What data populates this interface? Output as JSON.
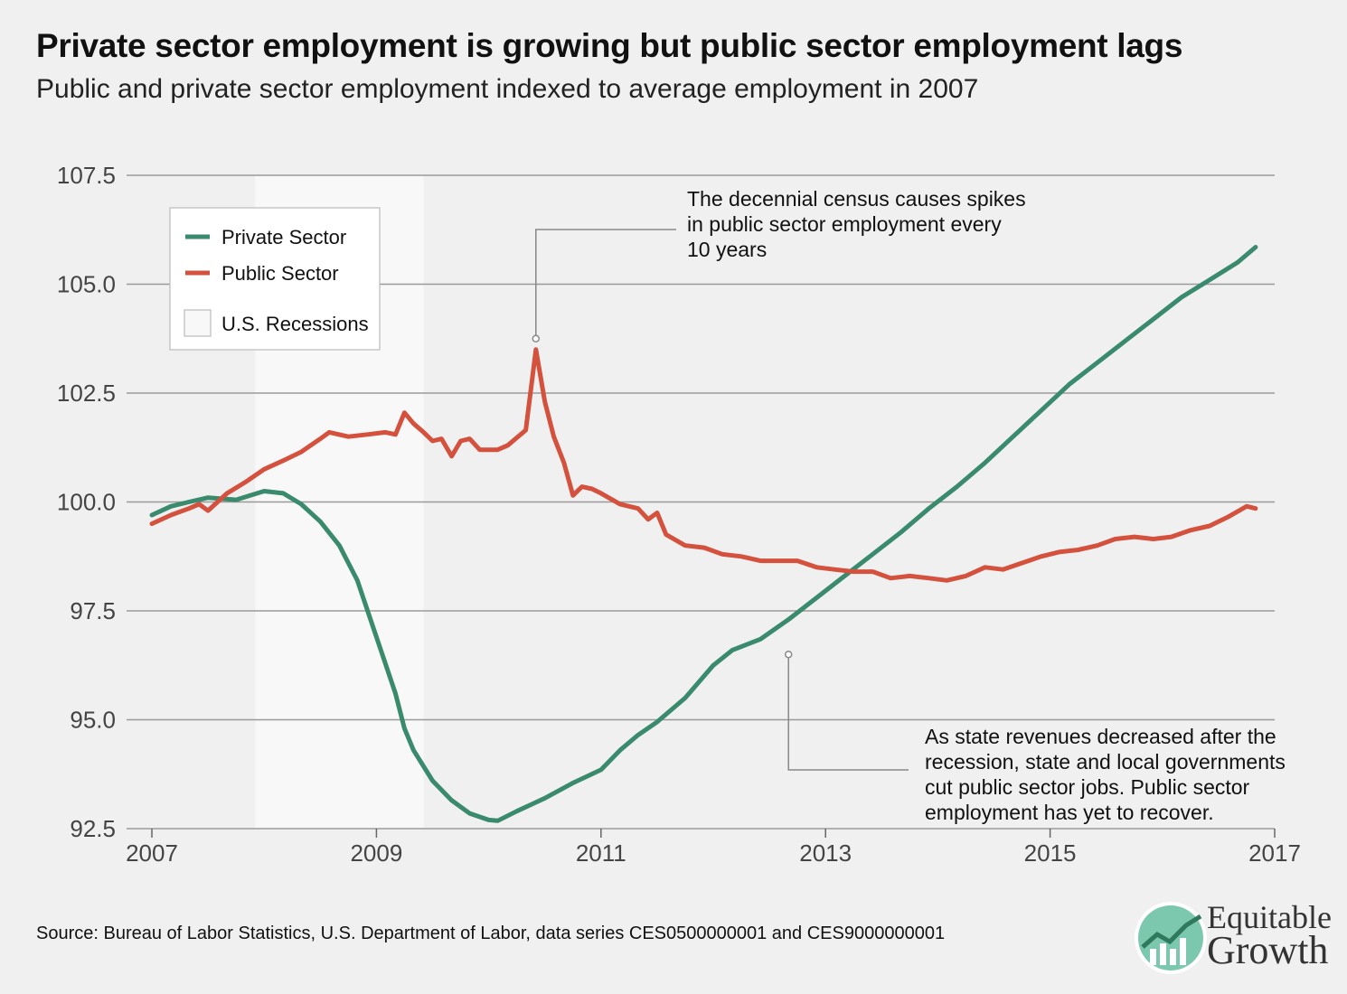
{
  "title": "Private sector employment is growing but public sector employment lags",
  "subtitle": "Public and private sector employment indexed to average employment in 2007",
  "source": "Source: Bureau of Labor Statistics, U.S. Department of Labor, data series CES0500000001 and CES9000000001",
  "logo": {
    "line1": "Equitable",
    "line2": "Growth"
  },
  "colors": {
    "private": "#3a8a6e",
    "public": "#d4513d",
    "recession": "#f8f8f8",
    "grid": "#9a9a9a",
    "background": "#f0f0f0"
  },
  "chart_data": {
    "type": "line",
    "title": "Private sector employment is growing but public sector employment lags",
    "subtitle": "Public and private sector employment indexed to average employment in 2007",
    "xlim": [
      2007,
      2017
    ],
    "ylim": [
      92.5,
      107.5
    ],
    "x_ticks": [
      "2007",
      "2009",
      "2011",
      "2013",
      "2015",
      "2017"
    ],
    "y_ticks": [
      "92.5",
      "95.0",
      "97.5",
      "100.0",
      "102.5",
      "105.0",
      "107.5"
    ],
    "grid": "horizontal",
    "legend": {
      "placement": "top-left",
      "entries": [
        "Private Sector",
        "Public Sector",
        "U.S. Recessions"
      ]
    },
    "recession": {
      "start": 2007.92,
      "end": 2009.42,
      "label": "U.S. Recessions"
    },
    "series": [
      {
        "name": "Private Sector",
        "color": "#3a8a6e",
        "points": [
          [
            2007.0,
            99.7
          ],
          [
            2007.17,
            99.9
          ],
          [
            2007.33,
            100.0
          ],
          [
            2007.5,
            100.1
          ],
          [
            2007.75,
            100.05
          ],
          [
            2008.0,
            100.25
          ],
          [
            2008.17,
            100.2
          ],
          [
            2008.33,
            99.95
          ],
          [
            2008.5,
            99.55
          ],
          [
            2008.67,
            99.0
          ],
          [
            2008.83,
            98.2
          ],
          [
            2009.0,
            96.9
          ],
          [
            2009.17,
            95.6
          ],
          [
            2009.25,
            94.8
          ],
          [
            2009.33,
            94.3
          ],
          [
            2009.5,
            93.6
          ],
          [
            2009.67,
            93.15
          ],
          [
            2009.83,
            92.85
          ],
          [
            2010.0,
            92.7
          ],
          [
            2010.08,
            92.68
          ],
          [
            2010.25,
            92.9
          ],
          [
            2010.5,
            93.2
          ],
          [
            2010.75,
            93.55
          ],
          [
            2011.0,
            93.85
          ],
          [
            2011.17,
            94.3
          ],
          [
            2011.33,
            94.65
          ],
          [
            2011.5,
            94.95
          ],
          [
            2011.75,
            95.5
          ],
          [
            2012.0,
            96.25
          ],
          [
            2012.17,
            96.6
          ],
          [
            2012.42,
            96.85
          ],
          [
            2012.67,
            97.3
          ],
          [
            2012.92,
            97.8
          ],
          [
            2013.17,
            98.3
          ],
          [
            2013.42,
            98.8
          ],
          [
            2013.67,
            99.3
          ],
          [
            2013.92,
            99.85
          ],
          [
            2014.17,
            100.35
          ],
          [
            2014.42,
            100.9
          ],
          [
            2014.67,
            101.5
          ],
          [
            2014.92,
            102.1
          ],
          [
            2015.17,
            102.7
          ],
          [
            2015.42,
            103.2
          ],
          [
            2015.67,
            103.7
          ],
          [
            2015.92,
            104.2
          ],
          [
            2016.17,
            104.7
          ],
          [
            2016.42,
            105.1
          ],
          [
            2016.67,
            105.5
          ],
          [
            2016.83,
            105.85
          ]
        ]
      },
      {
        "name": "Public Sector",
        "color": "#d4513d",
        "points": [
          [
            2007.0,
            99.5
          ],
          [
            2007.17,
            99.7
          ],
          [
            2007.33,
            99.85
          ],
          [
            2007.42,
            99.95
          ],
          [
            2007.5,
            99.8
          ],
          [
            2007.67,
            100.2
          ],
          [
            2007.83,
            100.45
          ],
          [
            2008.0,
            100.75
          ],
          [
            2008.17,
            100.95
          ],
          [
            2008.33,
            101.15
          ],
          [
            2008.5,
            101.45
          ],
          [
            2008.58,
            101.6
          ],
          [
            2008.75,
            101.5
          ],
          [
            2008.92,
            101.55
          ],
          [
            2009.08,
            101.6
          ],
          [
            2009.17,
            101.55
          ],
          [
            2009.25,
            102.05
          ],
          [
            2009.33,
            101.8
          ],
          [
            2009.42,
            101.6
          ],
          [
            2009.5,
            101.4
          ],
          [
            2009.58,
            101.45
          ],
          [
            2009.67,
            101.05
          ],
          [
            2009.75,
            101.4
          ],
          [
            2009.83,
            101.45
          ],
          [
            2009.92,
            101.2
          ],
          [
            2010.08,
            101.2
          ],
          [
            2010.17,
            101.3
          ],
          [
            2010.33,
            101.65
          ],
          [
            2010.42,
            103.5
          ],
          [
            2010.5,
            102.3
          ],
          [
            2010.58,
            101.5
          ],
          [
            2010.67,
            100.9
          ],
          [
            2010.75,
            100.15
          ],
          [
            2010.83,
            100.35
          ],
          [
            2010.92,
            100.3
          ],
          [
            2011.0,
            100.2
          ],
          [
            2011.17,
            99.95
          ],
          [
            2011.33,
            99.85
          ],
          [
            2011.42,
            99.6
          ],
          [
            2011.5,
            99.75
          ],
          [
            2011.58,
            99.25
          ],
          [
            2011.75,
            99.0
          ],
          [
            2011.92,
            98.95
          ],
          [
            2012.08,
            98.8
          ],
          [
            2012.25,
            98.75
          ],
          [
            2012.42,
            98.65
          ],
          [
            2012.58,
            98.65
          ],
          [
            2012.75,
            98.65
          ],
          [
            2012.92,
            98.5
          ],
          [
            2013.08,
            98.45
          ],
          [
            2013.25,
            98.4
          ],
          [
            2013.42,
            98.4
          ],
          [
            2013.58,
            98.25
          ],
          [
            2013.75,
            98.3
          ],
          [
            2013.92,
            98.25
          ],
          [
            2014.08,
            98.2
          ],
          [
            2014.25,
            98.3
          ],
          [
            2014.42,
            98.5
          ],
          [
            2014.58,
            98.45
          ],
          [
            2014.75,
            98.6
          ],
          [
            2014.92,
            98.75
          ],
          [
            2015.08,
            98.85
          ],
          [
            2015.25,
            98.9
          ],
          [
            2015.42,
            99.0
          ],
          [
            2015.58,
            99.15
          ],
          [
            2015.75,
            99.2
          ],
          [
            2015.92,
            99.15
          ],
          [
            2016.08,
            99.2
          ],
          [
            2016.25,
            99.35
          ],
          [
            2016.42,
            99.45
          ],
          [
            2016.58,
            99.65
          ],
          [
            2016.75,
            99.9
          ],
          [
            2016.83,
            99.85
          ]
        ]
      }
    ],
    "annotations": [
      {
        "lines": [
          "The decennial census causes spikes",
          "in public sector employment every",
          "10 years"
        ],
        "point": [
          2010.42,
          103.75
        ]
      },
      {
        "lines": [
          "As state revenues decreased after the",
          "recession, state and local governments",
          "cut public sector jobs. Public sector",
          "employment has yet to recover."
        ],
        "point": [
          2012.67,
          96.5
        ]
      }
    ]
  }
}
